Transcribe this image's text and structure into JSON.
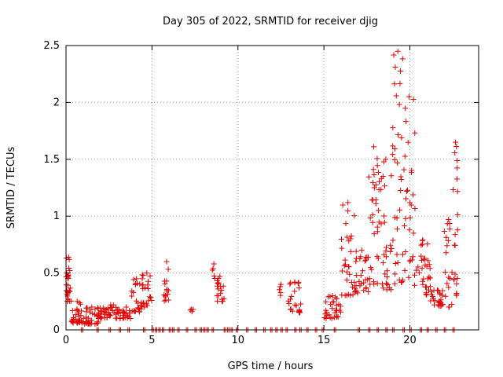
{
  "chart_data": {
    "type": "scatter",
    "title": "Day 305 of 2022, SRMTID for receiver djig",
    "xlabel": "GPS time / hours",
    "ylabel": "SRMTID / TECUs",
    "xlim": [
      0,
      24
    ],
    "ylim": [
      0,
      2.5
    ],
    "x_ticks": [
      0,
      5,
      10,
      15,
      20
    ],
    "x_tick_labels": [
      "0",
      "5",
      "10",
      "15",
      "20"
    ],
    "y_ticks": [
      0,
      0.5,
      1,
      1.5,
      2,
      2.5
    ],
    "y_tick_labels": [
      "0",
      "0.5",
      "1",
      "1.5",
      "2",
      "2.5"
    ],
    "grid": true,
    "marker": "+",
    "color": "#e00000",
    "series": [
      {
        "name": "SRMTID",
        "clusters": [
          {
            "x0": 0.0,
            "x1": 0.3,
            "ymin": 0.25,
            "ymax": 0.64,
            "n": 26
          },
          {
            "x0": 0.3,
            "x1": 1.0,
            "ymin": 0.06,
            "ymax": 0.25,
            "n": 30
          },
          {
            "x0": 1.0,
            "x1": 2.0,
            "ymin": 0.05,
            "ymax": 0.2,
            "n": 40
          },
          {
            "x0": 2.0,
            "x1": 3.2,
            "ymin": 0.1,
            "ymax": 0.22,
            "n": 40
          },
          {
            "x0": 3.2,
            "x1": 3.8,
            "ymin": 0.1,
            "ymax": 0.2,
            "n": 16
          },
          {
            "x0": 3.8,
            "x1": 4.4,
            "ymin": 0.15,
            "ymax": 0.45,
            "n": 22
          },
          {
            "x0": 4.4,
            "x1": 5.0,
            "ymin": 0.2,
            "ymax": 0.5,
            "n": 22
          },
          {
            "x0": 5.7,
            "x1": 6.0,
            "ymin": 0.25,
            "ymax": 0.6,
            "n": 14
          },
          {
            "x0": 7.2,
            "x1": 7.4,
            "ymin": 0.16,
            "ymax": 0.18,
            "n": 3
          },
          {
            "x0": 8.5,
            "x1": 8.7,
            "ymin": 0.45,
            "ymax": 0.58,
            "n": 4
          },
          {
            "x0": 8.7,
            "x1": 9.2,
            "ymin": 0.25,
            "ymax": 0.47,
            "n": 18
          },
          {
            "x0": 12.4,
            "x1": 12.6,
            "ymin": 0.3,
            "ymax": 0.4,
            "n": 4
          },
          {
            "x0": 12.9,
            "x1": 13.7,
            "ymin": 0.15,
            "ymax": 0.42,
            "n": 24
          },
          {
            "x0": 15.0,
            "x1": 16.0,
            "ymin": 0.1,
            "ymax": 0.3,
            "n": 30
          },
          {
            "x0": 16.0,
            "x1": 16.8,
            "ymin": 0.3,
            "ymax": 1.12,
            "n": 30
          },
          {
            "x0": 16.8,
            "x1": 17.6,
            "ymin": 0.3,
            "ymax": 0.7,
            "n": 28
          },
          {
            "x0": 17.6,
            "x1": 18.2,
            "ymin": 0.4,
            "ymax": 1.61,
            "n": 30
          },
          {
            "x0": 18.2,
            "x1": 19.0,
            "ymin": 0.35,
            "ymax": 1.5,
            "n": 30
          },
          {
            "x0": 19.0,
            "x1": 19.6,
            "ymin": 0.4,
            "ymax": 2.45,
            "n": 34
          },
          {
            "x0": 19.6,
            "x1": 20.3,
            "ymin": 0.3,
            "ymax": 2.05,
            "n": 30
          },
          {
            "x0": 20.3,
            "x1": 21.2,
            "ymin": 0.3,
            "ymax": 0.79,
            "n": 30
          },
          {
            "x0": 21.2,
            "x1": 22.0,
            "ymin": 0.2,
            "ymax": 0.35,
            "n": 24
          },
          {
            "x0": 22.0,
            "x1": 22.5,
            "ymin": 0.2,
            "ymax": 0.97,
            "n": 18
          },
          {
            "x0": 22.5,
            "x1": 22.8,
            "ymin": 0.3,
            "ymax": 1.65,
            "n": 20
          }
        ],
        "zero_value_hours": [
          0.9,
          1.8,
          2.5,
          3.1,
          3.6,
          4.5,
          5.0,
          5.2,
          5.4,
          5.6,
          6.0,
          6.2,
          6.5,
          7.0,
          7.5,
          7.8,
          8.0,
          8.2,
          8.5,
          9.2,
          9.4,
          9.6,
          9.9,
          10.5,
          11.0,
          11.5,
          11.9,
          12.2,
          12.5,
          12.8,
          13.3,
          13.6,
          14.0,
          14.5,
          14.9,
          15.6,
          17.0,
          17.6,
          18.1,
          18.6,
          19.0,
          19.6,
          20.0,
          20.6,
          21.0,
          21.5,
          22.0,
          22.5
        ]
      }
    ]
  }
}
